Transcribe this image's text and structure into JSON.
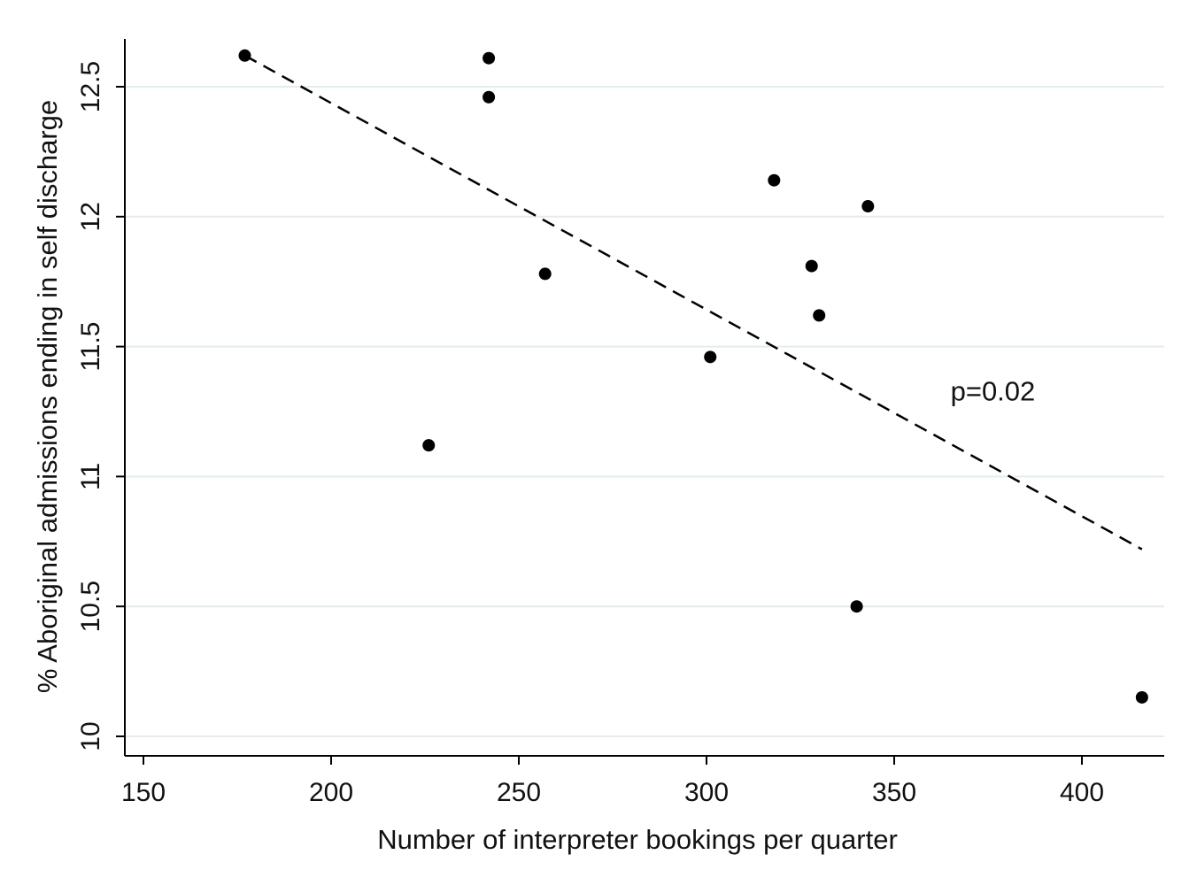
{
  "chart_data": {
    "type": "scatter",
    "xlabel": "Number of interpreter bookings per quarter",
    "ylabel": "% Aboriginal admissions ending in self discharge",
    "xlim": [
      145,
      420
    ],
    "ylim": [
      9.93,
      12.78
    ],
    "x_ticks": [
      150,
      200,
      250,
      300,
      350,
      400
    ],
    "y_ticks": [
      10,
      10.5,
      11,
      11.5,
      12,
      12.5
    ],
    "x_tick_labels": [
      "150",
      "200",
      "250",
      "300",
      "350",
      "400"
    ],
    "y_tick_labels": [
      "10",
      "10.5",
      "11",
      "11.5",
      "12",
      "12.5"
    ],
    "grid": "horizontal",
    "points": [
      {
        "x": 177,
        "y": 12.62
      },
      {
        "x": 242,
        "y": 12.61
      },
      {
        "x": 242,
        "y": 12.46
      },
      {
        "x": 226,
        "y": 11.12
      },
      {
        "x": 257,
        "y": 11.78
      },
      {
        "x": 301,
        "y": 11.46
      },
      {
        "x": 318,
        "y": 12.14
      },
      {
        "x": 328,
        "y": 11.81
      },
      {
        "x": 330,
        "y": 11.62
      },
      {
        "x": 343,
        "y": 12.04
      },
      {
        "x": 340,
        "y": 10.5
      },
      {
        "x": 416,
        "y": 10.15
      }
    ],
    "fit_line": {
      "style": "dashed",
      "x": [
        177,
        416
      ],
      "y": [
        12.62,
        10.72
      ]
    },
    "annotations": [
      {
        "text": "p=0.02",
        "x": 365,
        "y": 11.33
      }
    ],
    "colors": {
      "points": "#000000",
      "line": "#000000",
      "grid": "#e3ecee",
      "axis": "#000000"
    }
  }
}
